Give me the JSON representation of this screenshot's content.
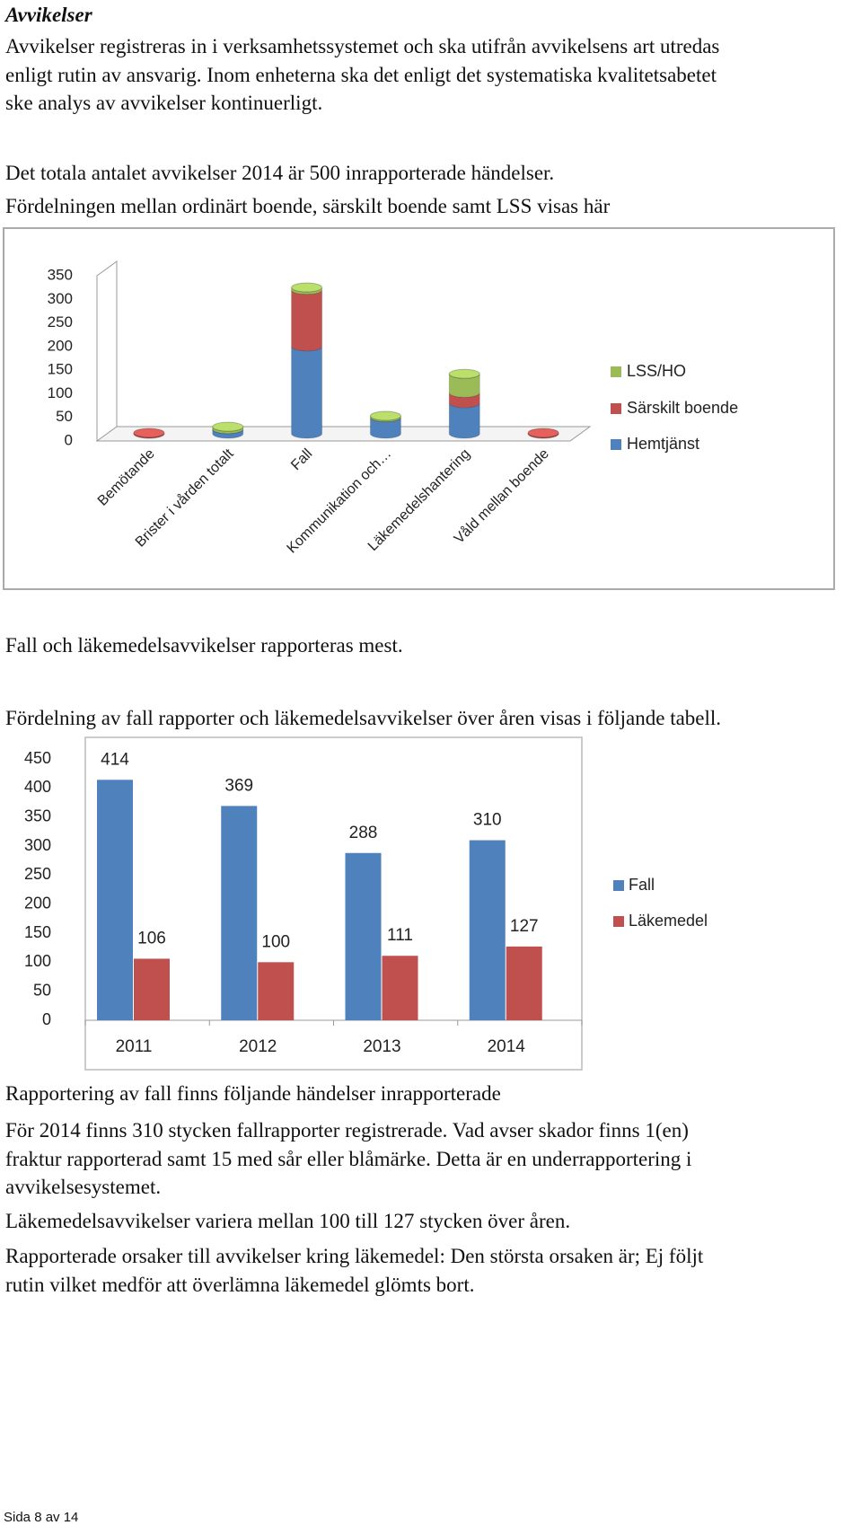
{
  "heading": "Avvikelser",
  "intro": {
    "lines": [
      "Avvikelser registreras in i verksamhetssystemet och ska utifrån avvikelsens art utredas",
      "enligt rutin av ansvarig. Inom enheterna ska det enligt det systematiska kvalitetsabetet",
      "ske analys av avvikelser kontinuerligt."
    ]
  },
  "summary": {
    "lines": [
      "Det totala antalet avvikelser 2014 är 500 inrapporterade händelser.",
      "Fördelningen mellan ordinärt boende, särskilt boende samt LSS visas här"
    ]
  },
  "chart_data": [
    {
      "type": "bar",
      "stacked": true,
      "three_d": true,
      "categories": [
        "Bemötande",
        "Brister i vården totalt",
        "Fall",
        "Kommunikation och…",
        "Läkemedelshantering",
        "Våld mellan boende"
      ],
      "series": [
        {
          "name": "Hemtjänst",
          "color": "#4f81bd",
          "values": [
            0,
            10,
            185,
            35,
            65,
            0
          ]
        },
        {
          "name": "Särskilt boende",
          "color": "#c0504d",
          "values": [
            2,
            0,
            120,
            0,
            22,
            2
          ]
        },
        {
          "name": "LSS/HO",
          "color": "#9bbb59",
          "values": [
            0,
            5,
            5,
            3,
            40,
            0
          ]
        }
      ],
      "ylim": [
        0,
        350
      ],
      "yticks": [
        0,
        50,
        100,
        150,
        200,
        250,
        300,
        350
      ],
      "legend": "right"
    },
    {
      "type": "bar",
      "stacked": false,
      "data_labels": true,
      "categories": [
        "2011",
        "2012",
        "2013",
        "2014"
      ],
      "series": [
        {
          "name": "Fall",
          "color": "#4f81bd",
          "values": [
            414,
            369,
            288,
            310
          ]
        },
        {
          "name": "Läkemedel",
          "color": "#c0504d",
          "values": [
            106,
            100,
            111,
            127
          ]
        }
      ],
      "ylim": [
        0,
        450
      ],
      "yticks": [
        0,
        50,
        100,
        150,
        200,
        250,
        300,
        350,
        400,
        450
      ],
      "legend": "right"
    }
  ],
  "note_1": "Fall och läkemedelsavvikelser rapporteras mest.",
  "note_2": "Fördelning av fall rapporter och läkemedelsavvikelser över åren visas i följande tabell.",
  "falls": {
    "heading": "Rapportering av fall finns följande händelser inrapporterade",
    "lines": [
      "För 2014 finns 310 stycken fallrapporter registrerade.  Vad avser skador finns 1(en)",
      "fraktur rapporterad samt 15 med sår eller blåmärke. Detta är en underrapportering i",
      "avvikelsesystemet."
    ]
  },
  "medication": "Läkemedelsavvikelser variera mellan 100 till 127 stycken över åren.",
  "causes": {
    "lines": [
      "Rapporterade orsaker till avvikelser kring läkemedel: Den största orsaken är; Ej följt",
      "rutin vilket medför att överlämna läkemedel glömts bort."
    ]
  },
  "footer": "Sida 8 av 14"
}
